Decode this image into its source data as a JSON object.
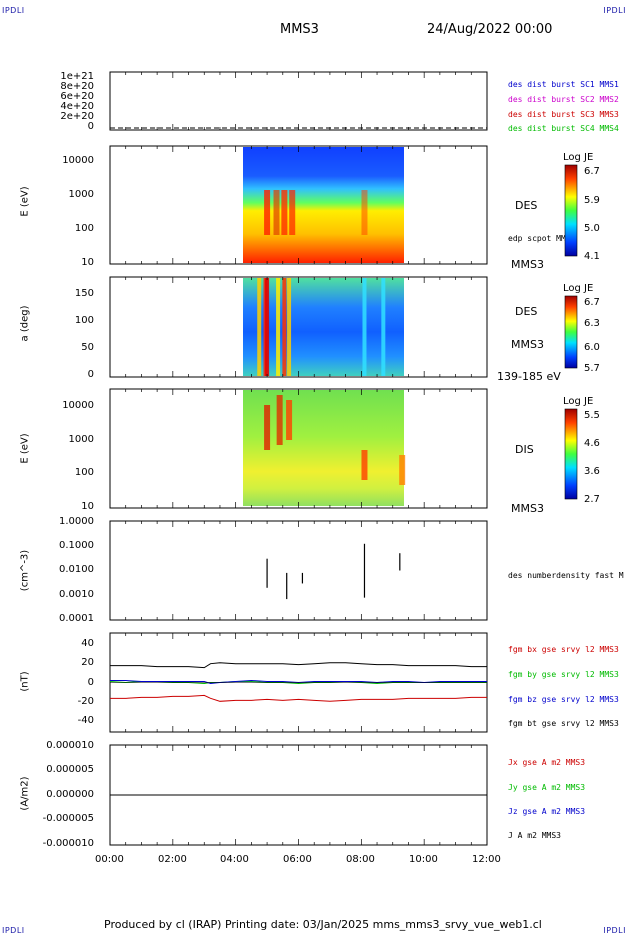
{
  "header": {
    "ipdli_tl": "IPDLI",
    "ipdli_tr": "IPDLI",
    "ipdli_bl": "IPDLI",
    "ipdli_br": "IPDLI",
    "spacecraft": "MMS3",
    "datetime": "24/Aug/2022 00:00"
  },
  "footer": {
    "text": "Produced by cl (IRAP)   Printing date: 03/Jan/2025   mms_mms3_srvy_vue_web1.cl"
  },
  "colors": {
    "mms1": "#0000cc",
    "mms2": "#cc00cc",
    "mms3": "#cc0000",
    "mms4": "#00bb00",
    "black": "#000000"
  },
  "x_axis": {
    "ticks": [
      "00:00",
      "02:00",
      "04:00",
      "06:00",
      "08:00",
      "10:00",
      "12:00"
    ],
    "range_hours": [
      0,
      12
    ]
  },
  "panels": {
    "p1": {
      "yticks": [
        "1e+21",
        "8e+20",
        "6e+20",
        "4e+20",
        "2e+20",
        "0"
      ],
      "legend": [
        "des dist burst SC1 MMS1",
        "des dist burst SC2 MMS2",
        "des dist burst SC3 MMS3",
        "des dist burst SC4 MMS4"
      ]
    },
    "p2": {
      "ylabel": "E (eV)",
      "yticks": [
        "10000",
        "1000",
        "100",
        "10"
      ],
      "side_label": "DES",
      "side_note": "edp scpot MMS3",
      "bottom_label": "MMS3",
      "colorbar": {
        "title": "Log JE",
        "ticks": [
          "6.7",
          "5.9",
          "5.0",
          "4.1"
        ]
      }
    },
    "p3": {
      "ylabel": "a (deg)",
      "yticks": [
        "150",
        "100",
        "50",
        "0"
      ],
      "side_label": "DES",
      "side_note": "MMS3",
      "bottom_label": "139-185 eV",
      "colorbar": {
        "title": "Log JE",
        "ticks": [
          "6.7",
          "6.3",
          "6.0",
          "5.7"
        ]
      }
    },
    "p4": {
      "ylabel": "E (eV)",
      "yticks": [
        "10000",
        "1000",
        "100",
        "10"
      ],
      "side_label": "DIS",
      "bottom_label": "MMS3",
      "colorbar": {
        "title": "Log JE",
        "ticks": [
          "5.5",
          "4.6",
          "3.6",
          "2.7"
        ]
      }
    },
    "p5": {
      "ylabel": "(cm^-3)",
      "yticks": [
        "1.0000",
        "0.1000",
        "0.0100",
        "0.0010",
        "0.0001"
      ],
      "legend": [
        "des numberdensity fast M"
      ]
    },
    "p6": {
      "ylabel": "(nT)",
      "yticks": [
        "40",
        "20",
        "0",
        "-20",
        "-40"
      ],
      "legend": [
        "fgm bx gse srvy l2 MMS3",
        "fgm by gse srvy l2 MMS3",
        "fgm bz gse srvy l2 MMS3",
        "fgm bt gse srvy l2 MMS3"
      ]
    },
    "p7": {
      "ylabel": "(A/m2)",
      "yticks": [
        "0.000010",
        "0.000005",
        "0.000000",
        "-0.000005",
        "-0.000010"
      ],
      "legend": [
        "Jx gse A m2 MMS3",
        "Jy gse A m2 MMS3",
        "Jz gse A m2 MMS3",
        "J A m2 MMS3"
      ]
    }
  },
  "chart_data": [
    {
      "type": "line",
      "title": "des dist burst",
      "ylim": [
        0,
        1.1e+21
      ],
      "series": [
        {
          "name": "des dist burst SC1 MMS1",
          "x_hours": [
            0,
            12
          ],
          "values": [
            0,
            0
          ]
        },
        {
          "name": "des dist burst SC2 MMS2",
          "x_hours": [
            0,
            12
          ],
          "values": [
            0,
            0
          ]
        },
        {
          "name": "des dist burst SC3 MMS3",
          "x_hours": [
            0,
            12
          ],
          "values": [
            0,
            0
          ]
        },
        {
          "name": "des dist burst SC4 MMS4",
          "x_hours": [
            0,
            12
          ],
          "values": [
            0,
            0
          ]
        }
      ]
    },
    {
      "type": "heatmap",
      "ylabel": "E (eV)",
      "ylim": [
        10,
        30000
      ],
      "yscale": "log",
      "data_extent_hours": [
        4.25,
        9.35
      ],
      "colorbar": "Log JE",
      "clim": [
        4.1,
        6.7
      ]
    },
    {
      "type": "heatmap",
      "ylabel": "a (deg)",
      "ylim": [
        0,
        180
      ],
      "data_extent_hours": [
        4.25,
        9.35
      ],
      "energy_band": "139-185 eV",
      "clim": [
        5.7,
        6.7
      ]
    },
    {
      "type": "heatmap",
      "ylabel": "E (eV)",
      "ylim": [
        10,
        30000
      ],
      "yscale": "log",
      "data_extent_hours": [
        4.25,
        9.35
      ],
      "colorbar": "Log JE",
      "clim": [
        2.7,
        5.5
      ]
    },
    {
      "type": "line",
      "ylabel": "(cm^-3)",
      "yscale": "log",
      "ylim": [
        0.0001,
        1.0
      ],
      "series": [
        {
          "name": "des numberdensity fast M",
          "segments_hours": [
            [
              4.95,
              5.05
            ],
            [
              5.6,
              5.65
            ],
            [
              6.1,
              6.15
            ],
            [
              8.0,
              8.2
            ],
            [
              9.2,
              9.25
            ]
          ]
        }
      ]
    },
    {
      "type": "line",
      "ylabel": "(nT)",
      "ylim": [
        -50,
        50
      ],
      "x_hours": [
        0,
        0.5,
        1,
        1.5,
        2,
        2.5,
        3,
        3.2,
        3.5,
        4,
        4.5,
        5,
        5.5,
        6,
        6.5,
        7,
        7.5,
        8,
        8.5,
        9,
        9.5,
        10,
        10.5,
        11,
        11.5,
        12
      ],
      "series": [
        {
          "name": "fgm bx gse srvy l2 MMS3",
          "values": [
            -16,
            -16,
            -15,
            -15,
            -14,
            -14,
            -13,
            -16,
            -19,
            -18,
            -18,
            -17,
            -18,
            -17,
            -18,
            -19,
            -18,
            -17,
            -17,
            -17,
            -16,
            -16,
            -16,
            -16,
            -15,
            -15
          ]
        },
        {
          "name": "fgm by gse srvy l2 MMS3",
          "values": [
            1,
            0,
            1,
            1,
            0,
            0,
            -1,
            0,
            0,
            1,
            1,
            0,
            0,
            -1,
            0,
            0,
            1,
            0,
            -1,
            0,
            0,
            0,
            0,
            0,
            0,
            0
          ]
        },
        {
          "name": "fgm bz gse srvy l2 MMS3",
          "values": [
            2,
            2,
            1,
            1,
            1,
            1,
            1,
            -1,
            0,
            1,
            2,
            1,
            1,
            0,
            1,
            1,
            1,
            1,
            0,
            1,
            1,
            0,
            1,
            1,
            1,
            1
          ]
        },
        {
          "name": "fgm bt gse srvy l2 MMS3",
          "values": [
            17,
            17,
            17,
            16,
            16,
            16,
            15,
            19,
            20,
            19,
            19,
            19,
            19,
            18,
            19,
            20,
            20,
            19,
            18,
            18,
            17,
            17,
            17,
            17,
            16,
            16
          ]
        }
      ]
    },
    {
      "type": "line",
      "ylabel": "(A/m2)",
      "ylim": [
        -1e-05,
        1e-05
      ],
      "series": [
        {
          "name": "Jx gse A m2 MMS3",
          "x_hours": [
            0,
            12
          ],
          "values": [
            0,
            0
          ]
        },
        {
          "name": "Jy gse A m2 MMS3",
          "x_hours": [
            0,
            12
          ],
          "values": [
            0,
            0
          ]
        },
        {
          "name": "Jz gse A m2 MMS3",
          "x_hours": [
            0,
            12
          ],
          "values": [
            0,
            0
          ]
        },
        {
          "name": "J A m2 MMS3",
          "x_hours": [
            0,
            12
          ],
          "values": [
            0,
            0
          ]
        }
      ]
    }
  ]
}
